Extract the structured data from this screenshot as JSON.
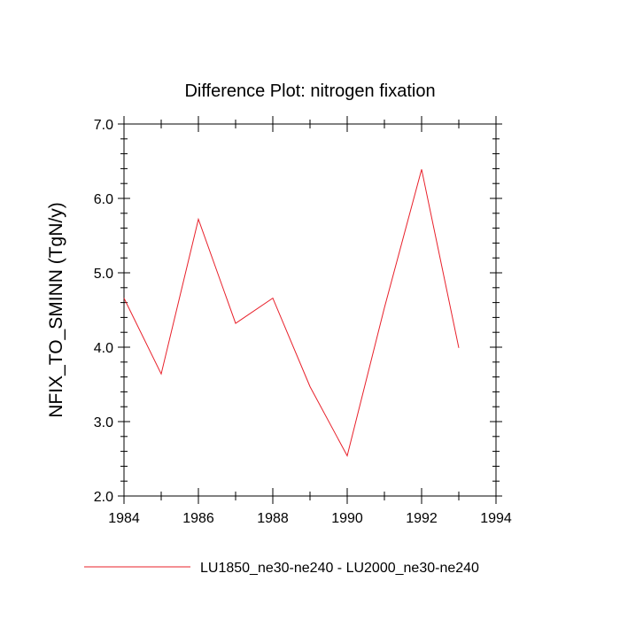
{
  "chart_data": {
    "type": "line",
    "title": "Difference Plot: nitrogen fixation",
    "xlabel": "",
    "ylabel": "NFIX_TO_SMINN  (TgN/y)",
    "xlim": [
      1984,
      1994
    ],
    "ylim": [
      2.0,
      7.0
    ],
    "x_ticks": [
      1984,
      1986,
      1988,
      1990,
      1992,
      1994
    ],
    "y_ticks": [
      2.0,
      3.0,
      4.0,
      5.0,
      6.0,
      7.0
    ],
    "x_tick_labels": [
      "1984",
      "1986",
      "1988",
      "1990",
      "1992",
      "1994"
    ],
    "y_tick_labels": [
      "2.0",
      "3.0",
      "4.0",
      "5.0",
      "6.0",
      "7.0"
    ],
    "grid": false,
    "legend_position": "bottom",
    "series": [
      {
        "name": "LU1850_ne30-ne240 - LU2000_ne30-ne240",
        "color": "#e8202a",
        "x": [
          1984,
          1985,
          1986,
          1987,
          1988,
          1989,
          1990,
          1991,
          1992,
          1993
        ],
        "y": [
          4.66,
          3.64,
          5.72,
          4.32,
          4.66,
          3.47,
          2.54,
          4.53,
          6.39,
          3.99
        ]
      }
    ]
  }
}
